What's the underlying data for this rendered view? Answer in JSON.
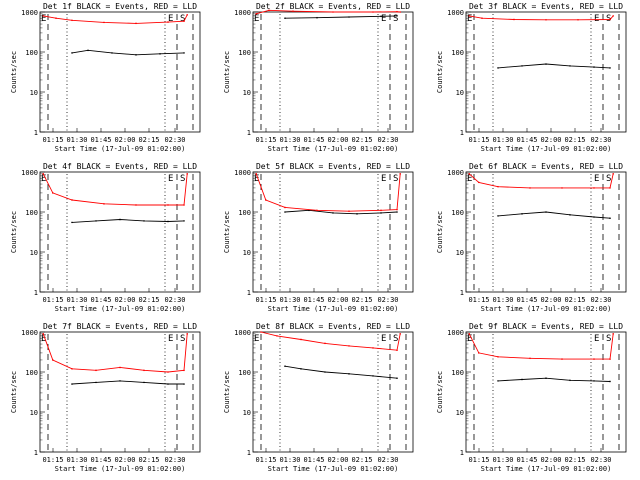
{
  "figure": {
    "ylabel": "Counts/sec",
    "xlabel": "Start Time (17-Jul-09 01:02:00)",
    "x_ticks": [
      "01:15",
      "01:30",
      "01:45",
      "02:00",
      "02:15",
      "02:30"
    ],
    "y_ticks": [
      "1",
      "10",
      "100",
      "1000"
    ],
    "edge_marks": {
      "left": "E",
      "right_e": "E",
      "right_s": "S"
    },
    "colors": {
      "events": "#000000",
      "lld": "#ff0000",
      "axes": "#000000"
    }
  },
  "chart_data": [
    {
      "type": "line",
      "title": "Det 1f BLACK = Events, RED = LLD",
      "y_scale": "log",
      "ylim": [
        1,
        1000
      ],
      "xlim_minutes": [
        0,
        100
      ],
      "series": [
        {
          "name": "Events",
          "color": "#000000",
          "x": [
            20,
            30,
            45,
            60,
            75,
            90
          ],
          "y": [
            95,
            110,
            95,
            85,
            90,
            95
          ]
        },
        {
          "name": "LLD",
          "color": "#ff0000",
          "x": [
            2,
            10,
            20,
            40,
            60,
            80,
            90,
            92
          ],
          "y": [
            800,
            700,
            620,
            550,
            520,
            560,
            590,
            850
          ]
        }
      ]
    },
    {
      "type": "line",
      "title": "Det 2f BLACK = Events, RED = LLD",
      "y_scale": "log",
      "ylim": [
        1,
        1000
      ],
      "xlim_minutes": [
        0,
        100
      ],
      "series": [
        {
          "name": "Events",
          "color": "#000000",
          "x": [
            20,
            40,
            60,
            80,
            90
          ],
          "y": [
            700,
            720,
            750,
            780,
            800
          ]
        },
        {
          "name": "LLD",
          "color": "#ff0000",
          "x": [
            2,
            10,
            25,
            50,
            75,
            90,
            92
          ],
          "y": [
            900,
            1100,
            1050,
            1000,
            1000,
            1020,
            1000
          ]
        }
      ]
    },
    {
      "type": "line",
      "title": "Det 3f BLACK = Events, RED = LLD",
      "y_scale": "log",
      "ylim": [
        1,
        1000
      ],
      "xlim_minutes": [
        0,
        100
      ],
      "series": [
        {
          "name": "Events",
          "color": "#000000",
          "x": [
            20,
            35,
            50,
            65,
            80,
            90
          ],
          "y": [
            40,
            45,
            50,
            45,
            42,
            40
          ]
        },
        {
          "name": "LLD",
          "color": "#ff0000",
          "x": [
            2,
            10,
            30,
            50,
            70,
            90,
            92
          ],
          "y": [
            800,
            700,
            650,
            640,
            640,
            650,
            800
          ]
        }
      ]
    },
    {
      "type": "line",
      "title": "Det 4f BLACK = Events, RED = LLD",
      "y_scale": "log",
      "ylim": [
        1,
        1000
      ],
      "xlim_minutes": [
        0,
        100
      ],
      "series": [
        {
          "name": "Events",
          "color": "#000000",
          "x": [
            20,
            35,
            50,
            65,
            80,
            90
          ],
          "y": [
            55,
            60,
            65,
            60,
            58,
            60
          ]
        },
        {
          "name": "LLD",
          "color": "#ff0000",
          "x": [
            2,
            8,
            20,
            40,
            60,
            80,
            90,
            92
          ],
          "y": [
            900,
            300,
            200,
            160,
            150,
            150,
            150,
            900
          ]
        }
      ]
    },
    {
      "type": "line",
      "title": "Det 5f BLACK = Events, RED = LLD",
      "y_scale": "log",
      "ylim": [
        1,
        1000
      ],
      "xlim_minutes": [
        0,
        100
      ],
      "series": [
        {
          "name": "Events",
          "color": "#000000",
          "x": [
            20,
            35,
            50,
            65,
            80,
            90
          ],
          "y": [
            100,
            110,
            95,
            90,
            95,
            100
          ]
        },
        {
          "name": "LLD",
          "color": "#ff0000",
          "x": [
            2,
            8,
            20,
            40,
            60,
            80,
            90,
            92
          ],
          "y": [
            900,
            200,
            130,
            110,
            105,
            110,
            115,
            900
          ]
        }
      ]
    },
    {
      "type": "line",
      "title": "Det 6f BLACK = Events, RED = LLD",
      "y_scale": "log",
      "ylim": [
        1,
        1000
      ],
      "xlim_minutes": [
        0,
        100
      ],
      "series": [
        {
          "name": "Events",
          "color": "#000000",
          "x": [
            20,
            35,
            50,
            65,
            80,
            90
          ],
          "y": [
            80,
            90,
            100,
            85,
            75,
            70
          ]
        },
        {
          "name": "LLD",
          "color": "#ff0000",
          "x": [
            2,
            8,
            20,
            40,
            60,
            80,
            90,
            92
          ],
          "y": [
            900,
            550,
            430,
            400,
            400,
            400,
            400,
            900
          ]
        }
      ]
    },
    {
      "type": "line",
      "title": "Det 7f BLACK = Events, RED = LLD",
      "y_scale": "log",
      "ylim": [
        1,
        1000
      ],
      "xlim_minutes": [
        0,
        100
      ],
      "series": [
        {
          "name": "Events",
          "color": "#000000",
          "x": [
            20,
            35,
            50,
            65,
            80,
            90
          ],
          "y": [
            50,
            55,
            60,
            55,
            50,
            50
          ]
        },
        {
          "name": "LLD",
          "color": "#ff0000",
          "x": [
            2,
            8,
            20,
            35,
            50,
            65,
            80,
            90,
            92
          ],
          "y": [
            900,
            200,
            120,
            110,
            130,
            110,
            100,
            110,
            900
          ]
        }
      ]
    },
    {
      "type": "line",
      "title": "Det 8f BLACK = Events, RED = LLD",
      "y_scale": "log",
      "ylim": [
        1,
        1000
      ],
      "xlim_minutes": [
        0,
        100
      ],
      "series": [
        {
          "name": "Events",
          "color": "#000000",
          "x": [
            20,
            30,
            45,
            60,
            75,
            90
          ],
          "y": [
            140,
            120,
            100,
            90,
            80,
            70
          ]
        },
        {
          "name": "LLD",
          "color": "#ff0000",
          "x": [
            5,
            15,
            30,
            45,
            60,
            75,
            90,
            92
          ],
          "y": [
            1000,
            800,
            650,
            520,
            450,
            400,
            350,
            900
          ]
        }
      ]
    },
    {
      "type": "line",
      "title": "Det 9f BLACK = Events, RED = LLD",
      "y_scale": "log",
      "ylim": [
        1,
        1000
      ],
      "xlim_minutes": [
        0,
        100
      ],
      "series": [
        {
          "name": "Events",
          "color": "#000000",
          "x": [
            20,
            35,
            50,
            65,
            80,
            90
          ],
          "y": [
            60,
            65,
            70,
            62,
            60,
            58
          ]
        },
        {
          "name": "LLD",
          "color": "#ff0000",
          "x": [
            2,
            8,
            20,
            40,
            60,
            80,
            90,
            92
          ],
          "y": [
            900,
            300,
            240,
            220,
            210,
            210,
            210,
            900
          ]
        }
      ]
    }
  ]
}
